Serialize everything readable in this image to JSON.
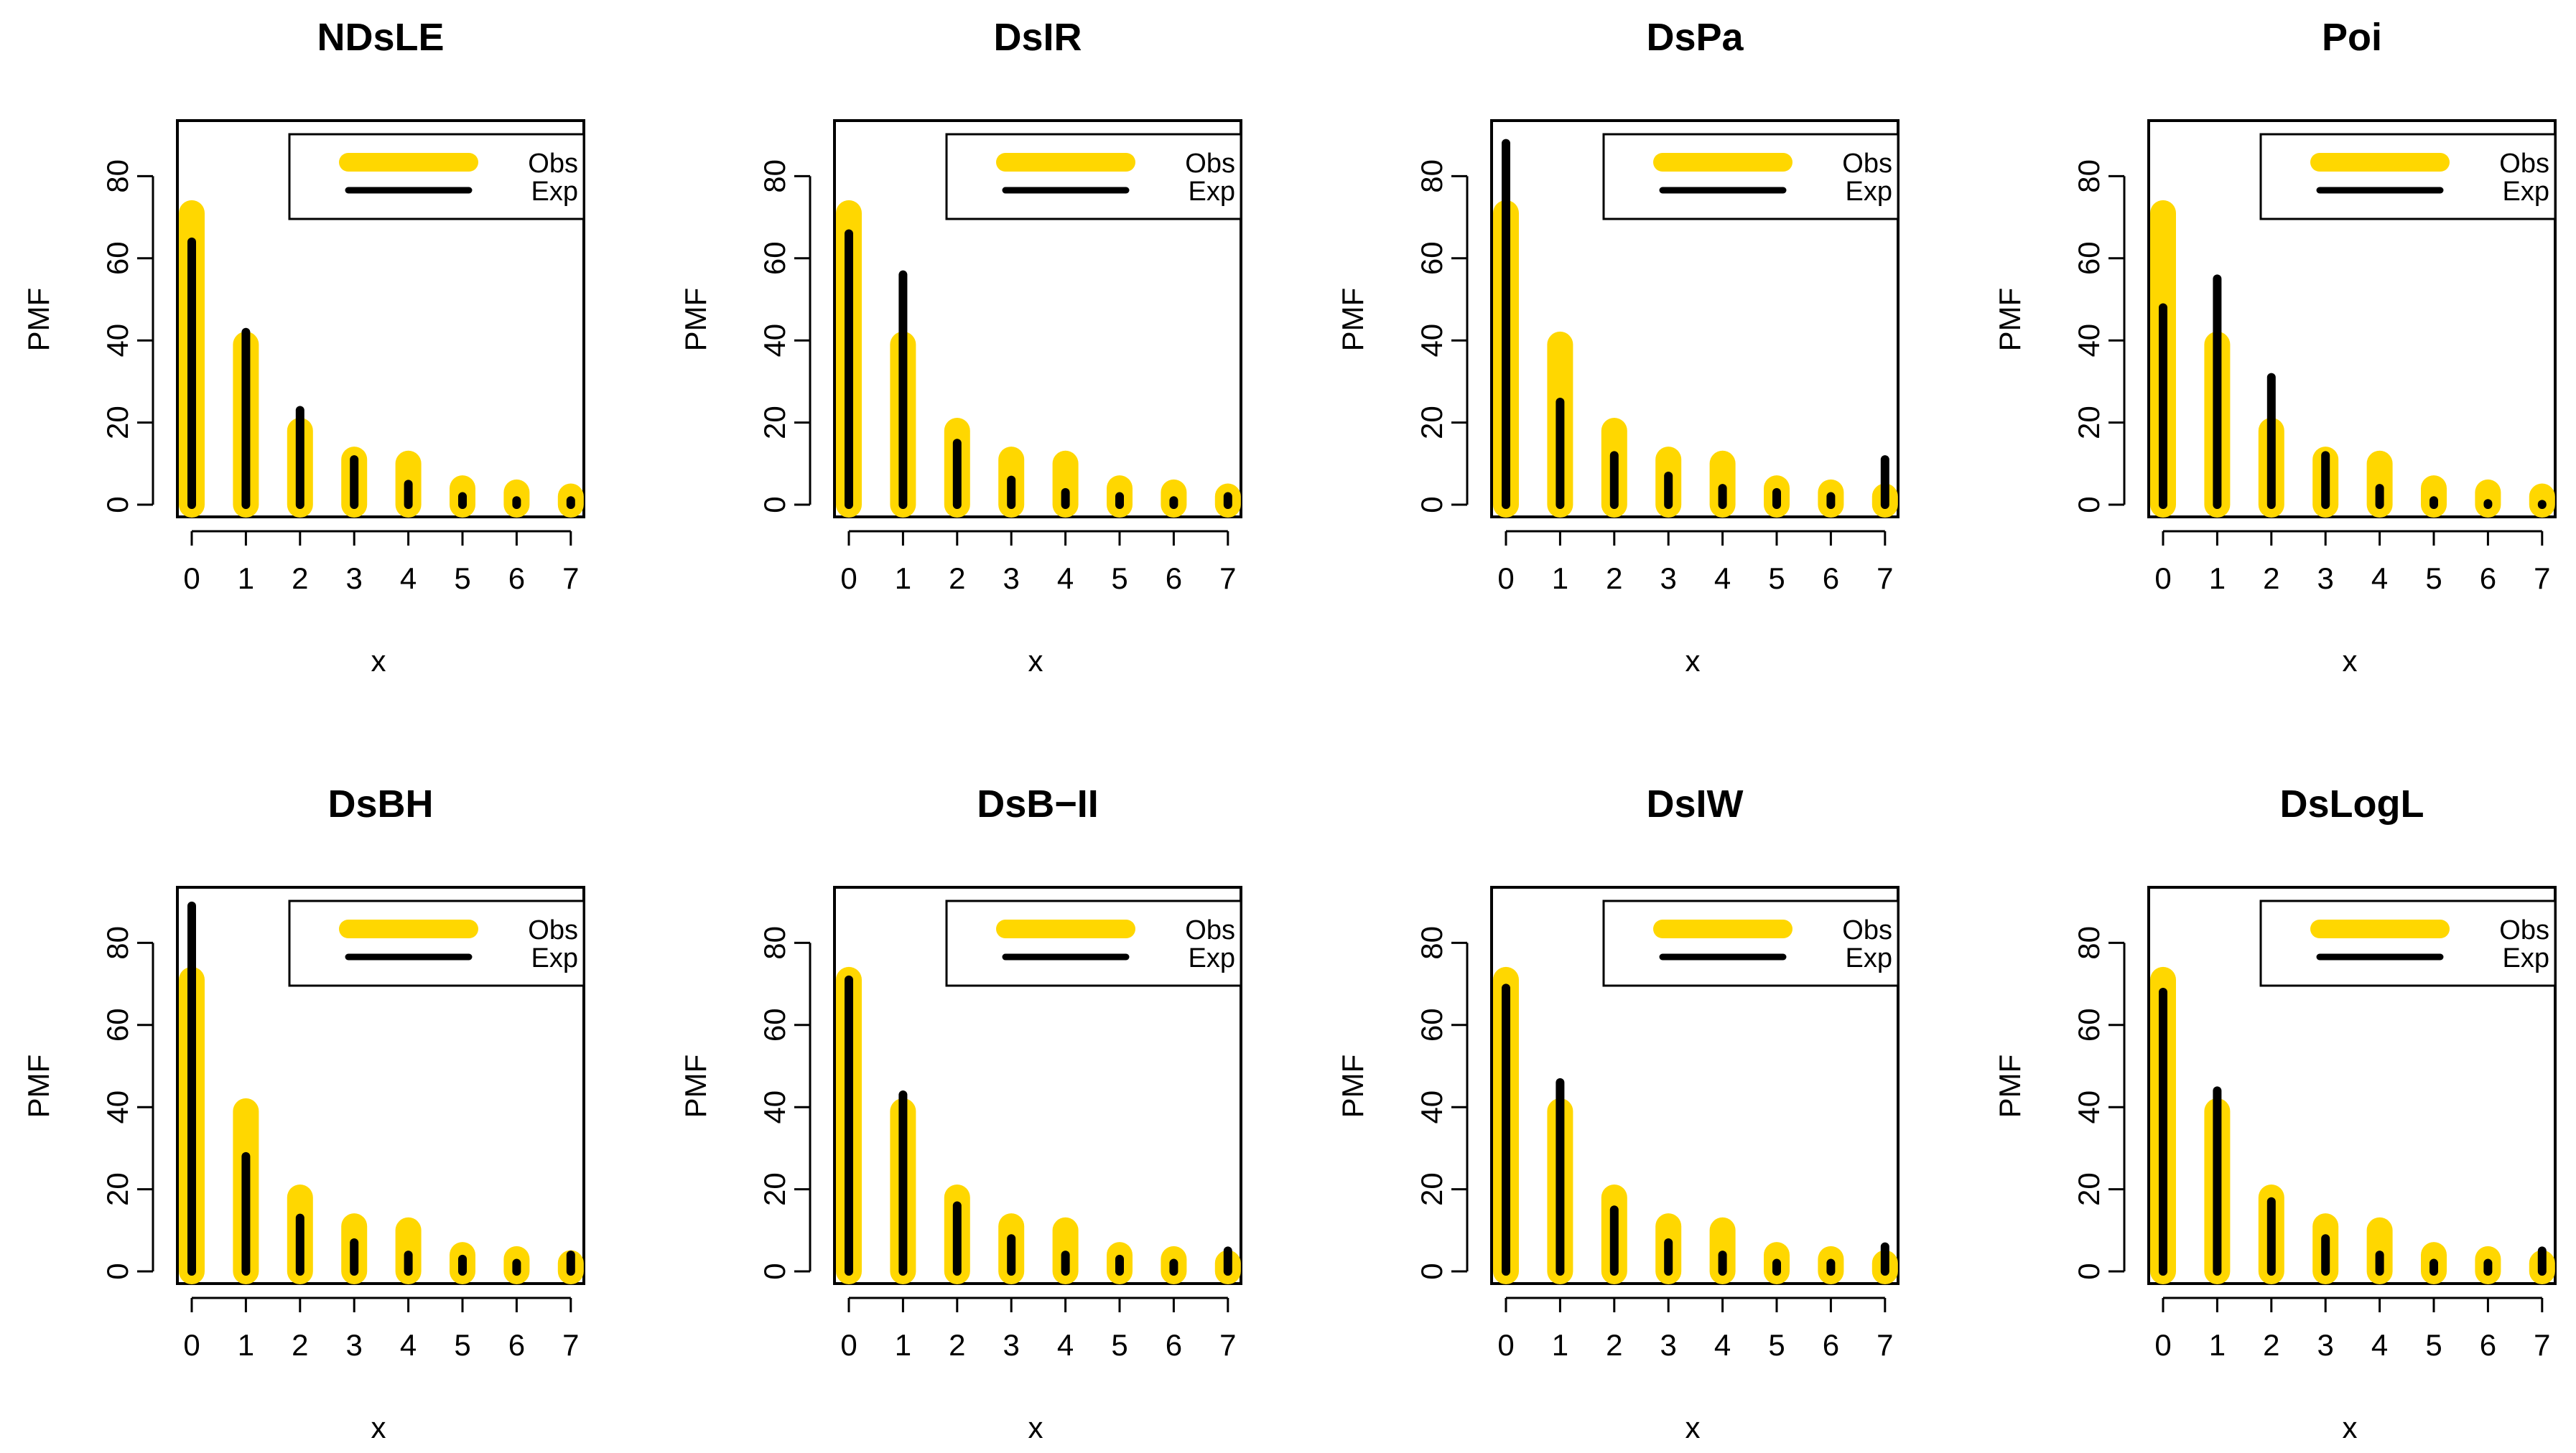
{
  "colors": {
    "observed": "#FFD700",
    "expected": "#000000",
    "axis": "#000000",
    "background": "#FFFFFF"
  },
  "chart_data": [
    {
      "type": "bar",
      "title": "NDsLE",
      "xlabel": "x",
      "ylabel": "PMF",
      "categories": [
        "0",
        "1",
        "2",
        "3",
        "4",
        "5",
        "6",
        "7"
      ],
      "xlim": [
        0,
        7
      ],
      "ylim": [
        -3,
        93
      ],
      "yticks": [
        0,
        20,
        40,
        60,
        80
      ],
      "grid": false,
      "legend_position": "top-right",
      "legend": [
        "Obs",
        "Exp"
      ],
      "series": [
        {
          "name": "Obs",
          "values": [
            71,
            39,
            18,
            11,
            10,
            4,
            3,
            2
          ]
        },
        {
          "name": "Exp",
          "values": [
            64,
            42,
            23,
            11,
            5,
            2,
            1,
            1
          ]
        }
      ]
    },
    {
      "type": "bar",
      "title": "DsIR",
      "xlabel": "x",
      "ylabel": "PMF",
      "categories": [
        "0",
        "1",
        "2",
        "3",
        "4",
        "5",
        "6",
        "7"
      ],
      "xlim": [
        0,
        7
      ],
      "ylim": [
        -3,
        93
      ],
      "yticks": [
        0,
        20,
        40,
        60,
        80
      ],
      "grid": false,
      "legend_position": "top-right",
      "legend": [
        "Obs",
        "Exp"
      ],
      "series": [
        {
          "name": "Obs",
          "values": [
            71,
            39,
            18,
            11,
            10,
            4,
            3,
            2
          ]
        },
        {
          "name": "Exp",
          "values": [
            66,
            56,
            15,
            6,
            3,
            2,
            1,
            2
          ]
        }
      ]
    },
    {
      "type": "bar",
      "title": "DsPa",
      "xlabel": "x",
      "ylabel": "PMF",
      "categories": [
        "0",
        "1",
        "2",
        "3",
        "4",
        "5",
        "6",
        "7"
      ],
      "xlim": [
        0,
        7
      ],
      "ylim": [
        -3,
        93
      ],
      "yticks": [
        0,
        20,
        40,
        60,
        80
      ],
      "grid": false,
      "legend_position": "top-right",
      "legend": [
        "Obs",
        "Exp"
      ],
      "series": [
        {
          "name": "Obs",
          "values": [
            71,
            39,
            18,
            11,
            10,
            4,
            3,
            2
          ]
        },
        {
          "name": "Exp",
          "values": [
            88,
            25,
            12,
            7,
            4,
            3,
            2,
            11
          ]
        }
      ]
    },
    {
      "type": "bar",
      "title": "Poi",
      "xlabel": "x",
      "ylabel": "PMF",
      "categories": [
        "0",
        "1",
        "2",
        "3",
        "4",
        "5",
        "6",
        "7"
      ],
      "xlim": [
        0,
        7
      ],
      "ylim": [
        -3,
        93
      ],
      "yticks": [
        0,
        20,
        40,
        60,
        80
      ],
      "grid": false,
      "legend_position": "top-right",
      "legend": [
        "Obs",
        "Exp"
      ],
      "series": [
        {
          "name": "Obs",
          "values": [
            71,
            39,
            18,
            11,
            10,
            4,
            3,
            2
          ]
        },
        {
          "name": "Exp",
          "values": [
            48,
            55,
            31,
            12,
            4,
            1,
            0.3,
            0.1
          ]
        }
      ]
    },
    {
      "type": "bar",
      "title": "DsBH",
      "xlabel": "x",
      "ylabel": "PMF",
      "categories": [
        "0",
        "1",
        "2",
        "3",
        "4",
        "5",
        "6",
        "7"
      ],
      "xlim": [
        0,
        7
      ],
      "ylim": [
        -3,
        93
      ],
      "yticks": [
        0,
        20,
        40,
        60,
        80
      ],
      "grid": false,
      "legend_position": "top-right",
      "legend": [
        "Obs",
        "Exp"
      ],
      "series": [
        {
          "name": "Obs",
          "values": [
            71,
            39,
            18,
            11,
            10,
            4,
            3,
            2
          ]
        },
        {
          "name": "Exp",
          "values": [
            89,
            28,
            13,
            7,
            4,
            3,
            2,
            4
          ]
        }
      ]
    },
    {
      "type": "bar",
      "title": "DsB−II",
      "xlabel": "x",
      "ylabel": "PMF",
      "categories": [
        "0",
        "1",
        "2",
        "3",
        "4",
        "5",
        "6",
        "7"
      ],
      "xlim": [
        0,
        7
      ],
      "ylim": [
        -3,
        93
      ],
      "yticks": [
        0,
        20,
        40,
        60,
        80
      ],
      "grid": false,
      "legend_position": "top-right",
      "legend": [
        "Obs",
        "Exp"
      ],
      "series": [
        {
          "name": "Obs",
          "values": [
            71,
            39,
            18,
            11,
            10,
            4,
            3,
            2
          ]
        },
        {
          "name": "Exp",
          "values": [
            71,
            43,
            16,
            8,
            4,
            3,
            2,
            5
          ]
        }
      ]
    },
    {
      "type": "bar",
      "title": "DsIW",
      "xlabel": "x",
      "ylabel": "PMF",
      "categories": [
        "0",
        "1",
        "2",
        "3",
        "4",
        "5",
        "6",
        "7"
      ],
      "xlim": [
        0,
        7
      ],
      "ylim": [
        -3,
        93
      ],
      "yticks": [
        0,
        20,
        40,
        60,
        80
      ],
      "grid": false,
      "legend_position": "top-right",
      "legend": [
        "Obs",
        "Exp"
      ],
      "series": [
        {
          "name": "Obs",
          "values": [
            71,
            39,
            18,
            11,
            10,
            4,
            3,
            2
          ]
        },
        {
          "name": "Exp",
          "values": [
            69,
            46,
            15,
            7,
            4,
            2,
            2,
            6
          ]
        }
      ]
    },
    {
      "type": "bar",
      "title": "DsLogL",
      "xlabel": "x",
      "ylabel": "PMF",
      "categories": [
        "0",
        "1",
        "2",
        "3",
        "4",
        "5",
        "6",
        "7"
      ],
      "xlim": [
        0,
        7
      ],
      "ylim": [
        -3,
        93
      ],
      "yticks": [
        0,
        20,
        40,
        60,
        80
      ],
      "grid": false,
      "legend_position": "top-right",
      "legend": [
        "Obs",
        "Exp"
      ],
      "series": [
        {
          "name": "Obs",
          "values": [
            71,
            39,
            18,
            11,
            10,
            4,
            3,
            2
          ]
        },
        {
          "name": "Exp",
          "values": [
            68,
            44,
            17,
            8,
            4,
            2,
            2,
            5
          ]
        }
      ]
    }
  ]
}
